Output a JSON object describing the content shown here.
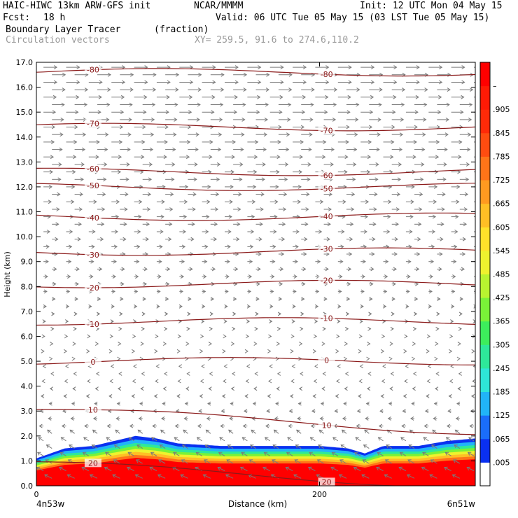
{
  "header": {
    "model": "HAIC-HIWC 13km ARW-GFS init",
    "org": "NCAR/MMMM",
    "init": "Init: 12 UTC Mon 04 May 15",
    "fcst_label": "Fcst:",
    "fcst_value": "18 h",
    "valid": "Valid: 06 UTC Tue 05 May 15 (03 LST Tue 05 May 15)",
    "field1": "Boundary Layer Tracer",
    "field1_units": "(fraction)",
    "field2": "Circulation vectors",
    "xy": "XY= 259.5, 91.6 to 274.6,110.2"
  },
  "chart_data": {
    "type": "heatmap",
    "ylabel": "Height (km)",
    "xlabel": "Distance (km)",
    "ylim": [
      0,
      17
    ],
    "xlim": [
      0,
      310
    ],
    "y_ticks": [
      "0.0",
      "1.0",
      "2.0",
      "3.0",
      "4.0",
      "5.0",
      "6.0",
      "7.0",
      "8.0",
      "9.0",
      "10.0",
      "11.0",
      "12.0",
      "13.0",
      "14.0",
      "15.0",
      "16.0",
      "17.0"
    ],
    "x_ticks": [
      {
        "value": 0,
        "label": "0"
      },
      {
        "value": 200,
        "label": "200"
      }
    ],
    "x_endpoints": {
      "left": "4n53w",
      "right": "6n51w"
    },
    "colorbar_labels": [
      ".005",
      ".065",
      ".125",
      ".185",
      ".245",
      ".305",
      ".365",
      ".425",
      ".485",
      ".545",
      ".605",
      ".665",
      ".725",
      ".785",
      ".845",
      ".905",
      "–"
    ],
    "colorbar_colors": [
      "#ffffff",
      "#0a30f0",
      "#1a6dfa",
      "#21b4f8",
      "#2ee6d8",
      "#2ee89a",
      "#3ded5c",
      "#7af238",
      "#b8f430",
      "#eef22e",
      "#ffe22a",
      "#ffbf25",
      "#ff9a20",
      "#ff7418",
      "#ff4c10",
      "#ff2a08",
      "#ff1a05",
      "#ff0000"
    ],
    "isotherms": [
      {
        "label": "-80",
        "height": 16.6
      },
      {
        "label": "-70",
        "height": 14.4
      },
      {
        "label": "-60",
        "height": 12.6
      },
      {
        "label": "-50",
        "height": 12.0
      },
      {
        "label": "-40",
        "height": 10.8
      },
      {
        "label": "-30",
        "height": 9.4
      },
      {
        "label": "-20",
        "height": 8.1
      },
      {
        "label": "-10",
        "height": 6.6
      },
      {
        "label": "0",
        "height": 5.0
      },
      {
        "label": "10",
        "height": 3.1
      },
      {
        "label": "20",
        "height": 0.9
      }
    ],
    "boundary_layer_top_km": [
      {
        "x": 0,
        "top": 1.1
      },
      {
        "x": 20,
        "top": 1.5
      },
      {
        "x": 40,
        "top": 1.6
      },
      {
        "x": 55,
        "top": 1.8
      },
      {
        "x": 70,
        "top": 2.0
      },
      {
        "x": 85,
        "top": 1.9
      },
      {
        "x": 100,
        "top": 1.7
      },
      {
        "x": 130,
        "top": 1.6
      },
      {
        "x": 170,
        "top": 1.6
      },
      {
        "x": 200,
        "top": 1.6
      },
      {
        "x": 220,
        "top": 1.5
      },
      {
        "x": 232,
        "top": 1.3
      },
      {
        "x": 245,
        "top": 1.6
      },
      {
        "x": 270,
        "top": 1.6
      },
      {
        "x": 290,
        "top": 1.8
      },
      {
        "x": 310,
        "top": 1.9
      }
    ],
    "colors": {
      "isotherm": "#8b1a1a",
      "vector": "#7a7a7a",
      "axis": "#000000"
    }
  }
}
